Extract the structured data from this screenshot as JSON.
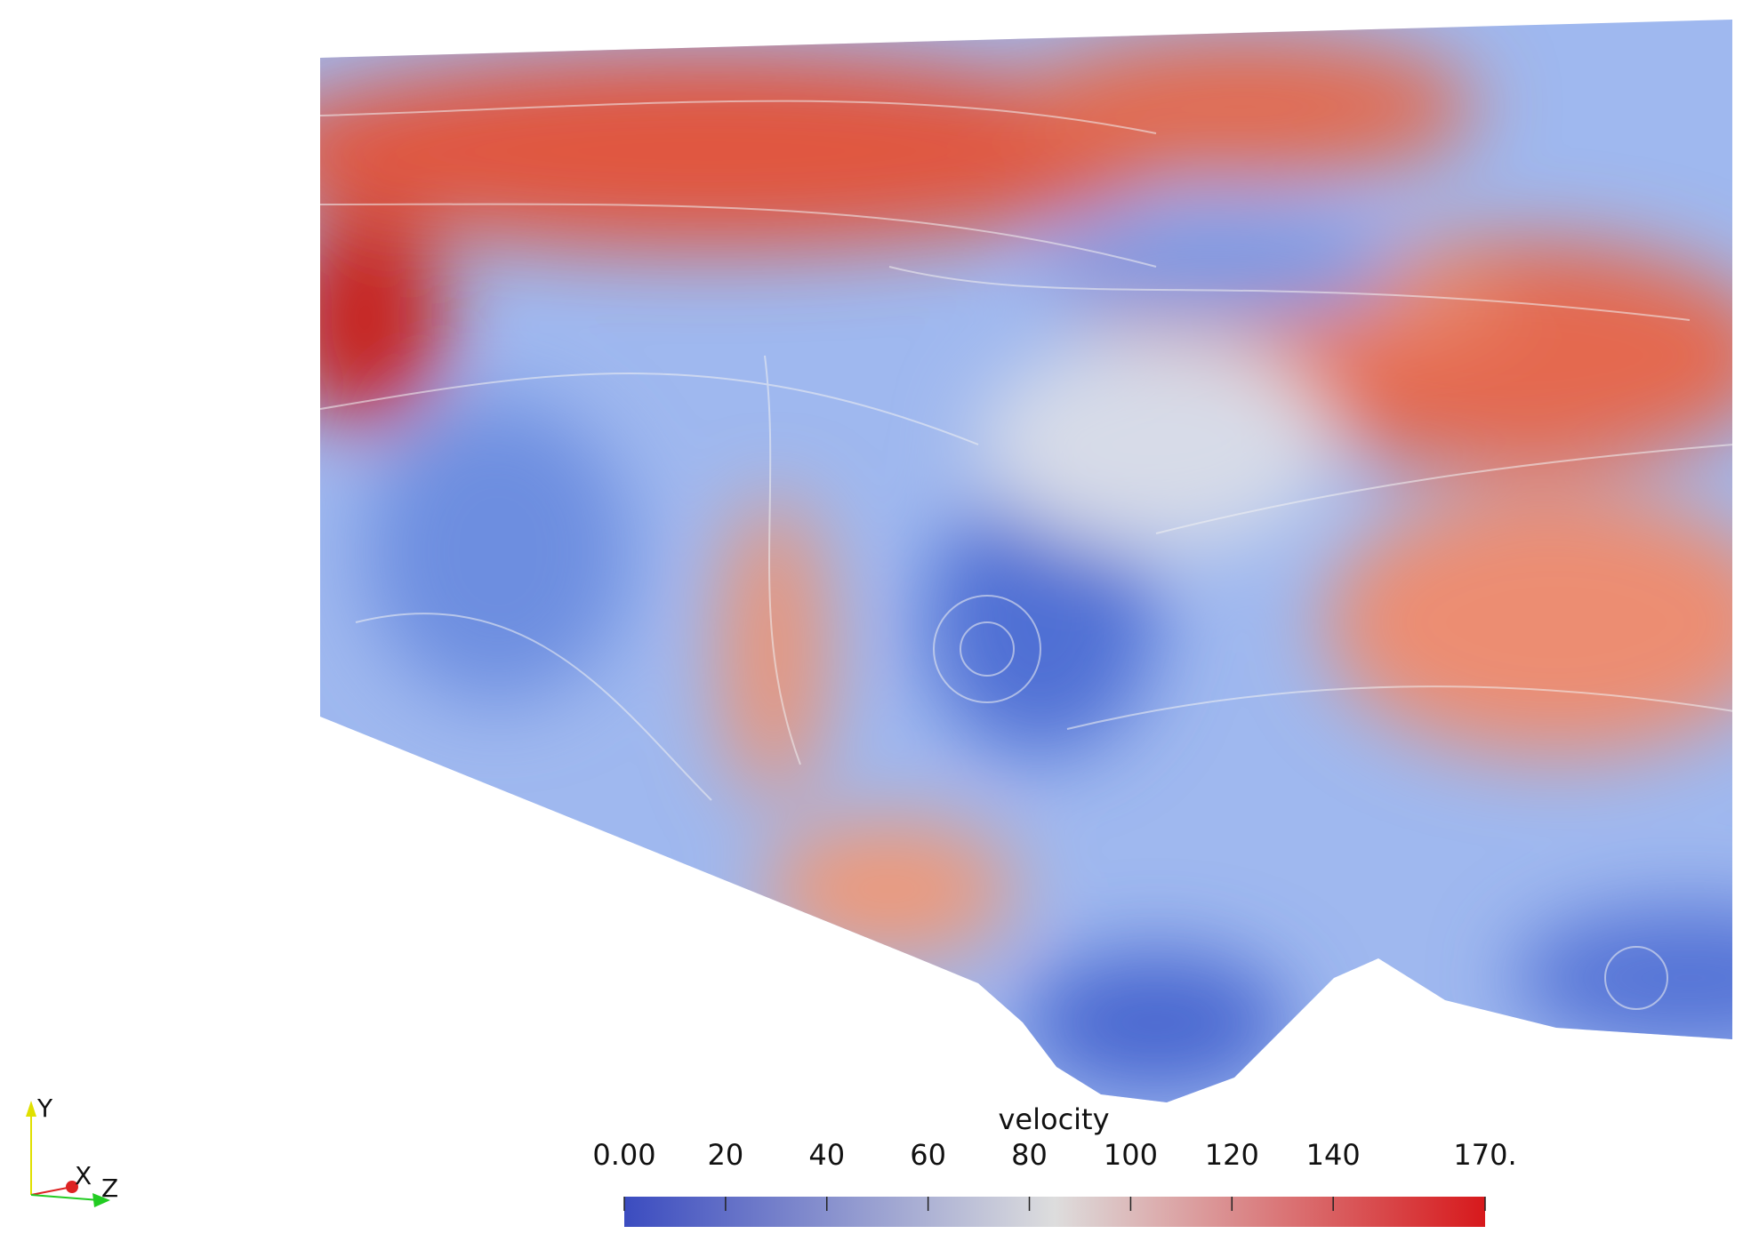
{
  "colorbar": {
    "title": "velocity",
    "range": [
      0,
      170
    ],
    "ticks": [
      {
        "value": 0,
        "label": "0.00"
      },
      20,
      40,
      60,
      80,
      100,
      120,
      140,
      {
        "value": 170,
        "label": "170."
      }
    ],
    "colors": [
      "#3b4cc0",
      "#dddddd",
      "#d7191c"
    ]
  },
  "axes": {
    "y": "Y",
    "x": "X",
    "z": "Z"
  }
}
